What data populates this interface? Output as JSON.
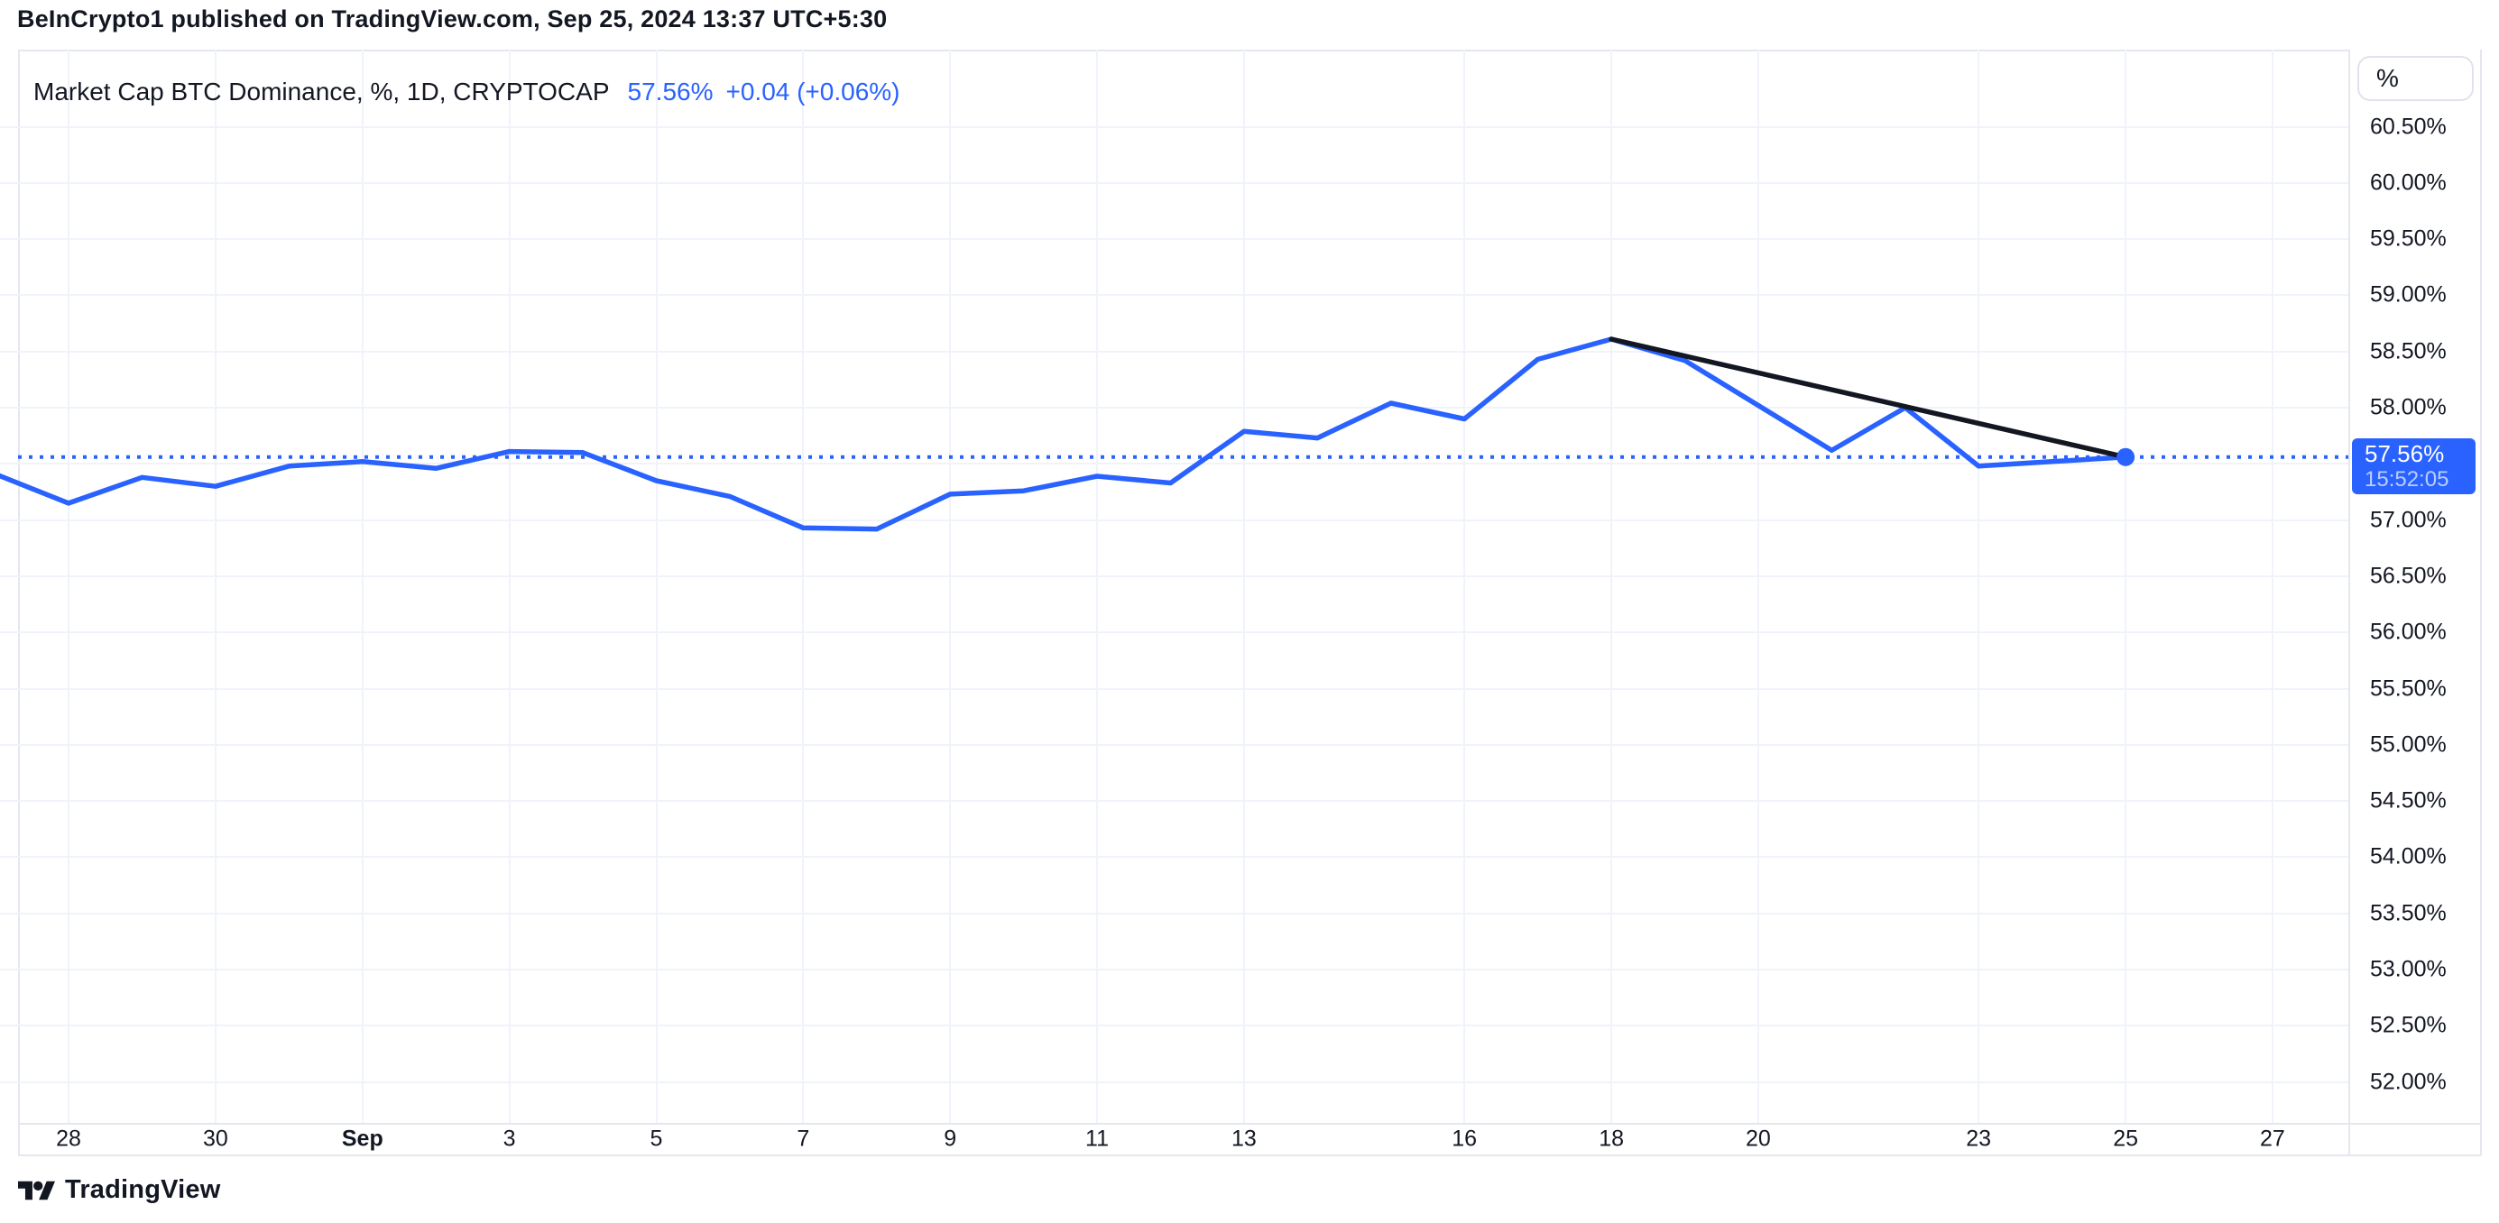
{
  "header": {
    "text": "BeInCrypto1 published on TradingView.com, Sep 25, 2024 13:37 UTC+5:30"
  },
  "legend": {
    "symbol_title": "Market Cap BTC Dominance, %, 1D, CRYPTOCAP",
    "last_value": "57.56%",
    "change": "+0.04 (+0.06%)"
  },
  "y_axis": {
    "unit_label": "%",
    "ticks": [
      {
        "value": 60.5,
        "label": "60.50%"
      },
      {
        "value": 60.0,
        "label": "60.00%"
      },
      {
        "value": 59.5,
        "label": "59.50%"
      },
      {
        "value": 59.0,
        "label": "59.00%"
      },
      {
        "value": 58.5,
        "label": "58.50%"
      },
      {
        "value": 58.0,
        "label": "58.00%"
      },
      {
        "value": 57.5,
        "label": ""
      },
      {
        "value": 57.0,
        "label": "57.00%"
      },
      {
        "value": 56.5,
        "label": "56.50%"
      },
      {
        "value": 56.0,
        "label": "56.00%"
      },
      {
        "value": 55.5,
        "label": "55.50%"
      },
      {
        "value": 55.0,
        "label": "55.00%"
      },
      {
        "value": 54.5,
        "label": "54.50%"
      },
      {
        "value": 54.0,
        "label": "54.00%"
      },
      {
        "value": 53.5,
        "label": "53.50%"
      },
      {
        "value": 53.0,
        "label": "53.00%"
      },
      {
        "value": 52.5,
        "label": "52.50%"
      },
      {
        "value": 52.0,
        "label": "52.00%"
      }
    ]
  },
  "x_axis": {
    "ticks": [
      {
        "label": "28",
        "day": 1
      },
      {
        "label": "30",
        "day": 3
      },
      {
        "label": "Sep",
        "day": 5,
        "bold": true
      },
      {
        "label": "3",
        "day": 7
      },
      {
        "label": "5",
        "day": 9
      },
      {
        "label": "7",
        "day": 11
      },
      {
        "label": "9",
        "day": 13
      },
      {
        "label": "11",
        "day": 15
      },
      {
        "label": "13",
        "day": 17
      },
      {
        "label": "16",
        "day": 20
      },
      {
        "label": "18",
        "day": 22
      },
      {
        "label": "20",
        "day": 24
      },
      {
        "label": "23",
        "day": 27
      },
      {
        "label": "25",
        "day": 29
      },
      {
        "label": "27",
        "day": 31
      }
    ]
  },
  "price_badge": {
    "price": "57.56%",
    "time": "15:52:05"
  },
  "footer": {
    "brand": "TradingView"
  },
  "colors": {
    "accent_blue": "#2962ff",
    "dark_text": "#131722",
    "trendline_black": "#131722",
    "grid": "#f0f3fa",
    "divider": "#e4e7ee",
    "badge_bg": "#2962ff"
  },
  "chart_data": {
    "type": "line",
    "title": "Market Cap BTC Dominance, %, 1D, CRYPTOCAP",
    "symbol": "CRYPTOCAP",
    "interval": "1D",
    "unit": "%",
    "x": [
      "Aug 27",
      "Aug 28",
      "Aug 29",
      "Aug 30",
      "Aug 31",
      "Sep 1",
      "Sep 2",
      "Sep 3",
      "Sep 4",
      "Sep 5",
      "Sep 6",
      "Sep 7",
      "Sep 8",
      "Sep 9",
      "Sep 10",
      "Sep 11",
      "Sep 12",
      "Sep 13",
      "Sep 14",
      "Sep 15",
      "Sep 16",
      "Sep 17",
      "Sep 18",
      "Sep 19",
      "Sep 20",
      "Sep 21",
      "Sep 22",
      "Sep 23",
      "Sep 24",
      "Sep 25"
    ],
    "values": [
      57.41,
      57.15,
      57.38,
      57.3,
      57.48,
      57.52,
      57.46,
      57.61,
      57.6,
      57.35,
      57.21,
      56.93,
      56.92,
      57.23,
      57.26,
      57.39,
      57.33,
      57.79,
      57.73,
      58.04,
      57.9,
      58.43,
      58.61,
      58.42,
      58.02,
      57.62,
      58.0,
      57.48,
      57.52,
      57.56
    ],
    "current": {
      "value": 57.56,
      "label": "57.56%",
      "time": "15:52:05",
      "change_abs": "+0.04",
      "change_pct": "+0.06%"
    },
    "trendline": {
      "from": {
        "x": "Sep 18",
        "value": 58.61
      },
      "to": {
        "x": "Sep 25",
        "value": 57.56
      }
    },
    "ylim": [
      51.7,
      60.9
    ],
    "y_tick_step": 0.5,
    "grid": true,
    "legend_position": "top-left",
    "axis_position": "right"
  }
}
